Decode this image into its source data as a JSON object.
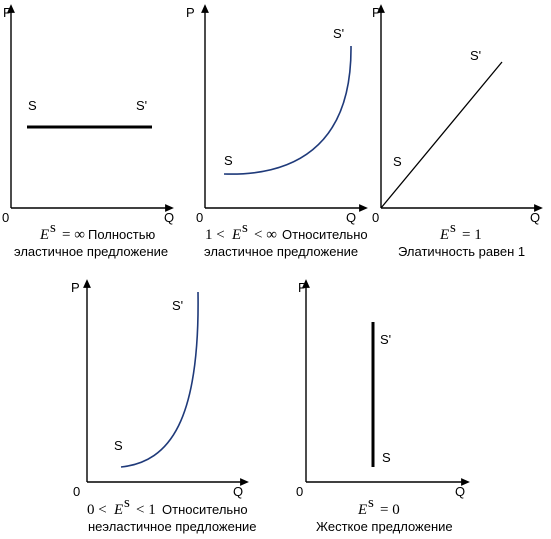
{
  "axis_labels": {
    "p": "P",
    "q": "Q",
    "origin": "0"
  },
  "curve_labels": {
    "start": "S",
    "end": "S'"
  },
  "panels": [
    {
      "id": "perfectly-elastic",
      "cond_pre": "",
      "cond_e": "E",
      "cond_sup": "s",
      "cond_post": "= ∞",
      "cond_text": "Полностью",
      "caption": "эластичное предложение"
    },
    {
      "id": "relatively-elastic",
      "cond_pre": "1 <",
      "cond_e": "E",
      "cond_sup": "s",
      "cond_post": "< ∞",
      "cond_text": "Относительно",
      "caption": "эластичное предложение"
    },
    {
      "id": "unit-elastic",
      "cond_pre": "",
      "cond_e": "E",
      "cond_sup": "s",
      "cond_post": "= 1",
      "cond_text": "",
      "caption": "Элатичность равен 1"
    },
    {
      "id": "relatively-inelastic",
      "cond_pre": "0 <",
      "cond_e": "E",
      "cond_sup": "s",
      "cond_post": "< 1",
      "cond_text": "Относительно",
      "caption": "неэластичное предложение"
    },
    {
      "id": "perfectly-inelastic",
      "cond_pre": "",
      "cond_e": "E",
      "cond_sup": "s",
      "cond_post": "= 0",
      "cond_text": "",
      "caption": "Жесткое предложение"
    }
  ],
  "colors": {
    "axis": "#000000",
    "curve_thick": "#000000",
    "curve_blue": "#1f3a7a"
  }
}
